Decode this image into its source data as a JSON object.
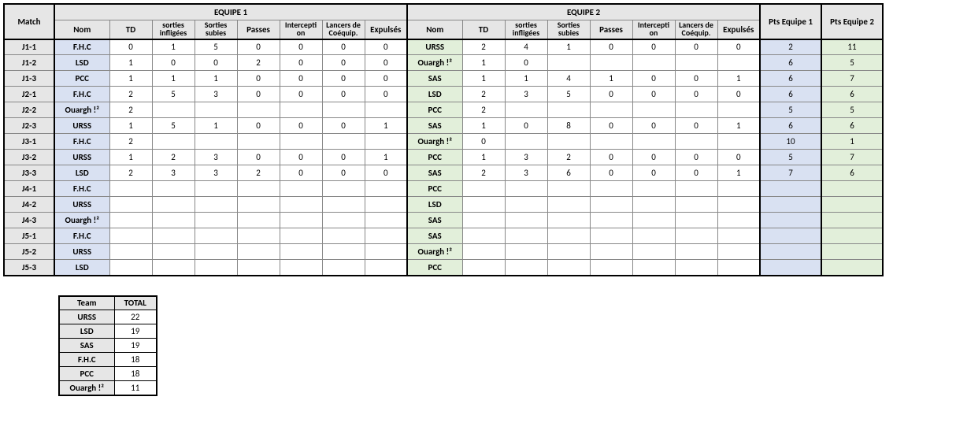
{
  "headers": {
    "match": "Match",
    "equipe1": "EQUIPE 1",
    "equipe2": "EQUIPE 2",
    "nom": "Nom",
    "td": "TD",
    "sort_infl": "sorties infligées",
    "sort_sub": "Sorties subies",
    "passes": "Passes",
    "intercept": "Intercepti on",
    "lancers": "Lancers de Coéquip.",
    "expulses": "Expulsés",
    "pts1": "Pts Equipe 1",
    "pts2": "Pts Equipe 2"
  },
  "colors": {
    "header_bg": "#e6e6e6",
    "nom1_bg": "#d9e1f2",
    "nom2_bg": "#e2efda",
    "border": "#888888",
    "thick_border": "#000000",
    "background": "#ffffff"
  },
  "rows": [
    {
      "m": "J1-1",
      "n1": "F.H.C",
      "s1": [
        "0",
        "1",
        "5",
        "0",
        "0",
        "0",
        "0"
      ],
      "n2": "URSS",
      "s2": [
        "2",
        "4",
        "1",
        "0",
        "0",
        "0",
        "0"
      ],
      "p1": "2",
      "p2": "11"
    },
    {
      "m": "J1-2",
      "n1": "LSD",
      "s1": [
        "1",
        "0",
        "0",
        "2",
        "0",
        "0",
        "0"
      ],
      "n2": "Ouargh !²",
      "s2": [
        "1",
        "0",
        "",
        "",
        "",
        "",
        ""
      ],
      "p1": "6",
      "p2": "5"
    },
    {
      "m": "J1-3",
      "n1": "PCC",
      "s1": [
        "1",
        "1",
        "1",
        "0",
        "0",
        "0",
        "0"
      ],
      "n2": "SAS",
      "s2": [
        "1",
        "1",
        "4",
        "1",
        "0",
        "0",
        "1"
      ],
      "p1": "6",
      "p2": "7"
    },
    {
      "m": "J2-1",
      "n1": "F.H.C",
      "s1": [
        "2",
        "5",
        "3",
        "0",
        "0",
        "0",
        "0"
      ],
      "n2": "LSD",
      "s2": [
        "2",
        "3",
        "5",
        "0",
        "0",
        "0",
        "0"
      ],
      "p1": "6",
      "p2": "6"
    },
    {
      "m": "J2-2",
      "n1": "Ouargh !²",
      "s1": [
        "2",
        "",
        "",
        "",
        "",
        "",
        ""
      ],
      "n2": "PCC",
      "s2": [
        "2",
        "",
        "",
        "",
        "",
        "",
        ""
      ],
      "p1": "5",
      "p2": "5"
    },
    {
      "m": "J2-3",
      "n1": "URSS",
      "s1": [
        "1",
        "5",
        "1",
        "0",
        "0",
        "0",
        "1"
      ],
      "n2": "SAS",
      "s2": [
        "1",
        "0",
        "8",
        "0",
        "0",
        "0",
        "1"
      ],
      "p1": "6",
      "p2": "6"
    },
    {
      "m": "J3-1",
      "n1": "F.H.C",
      "s1": [
        "2",
        "",
        "",
        "",
        "",
        "",
        ""
      ],
      "n2": "Ouargh !²",
      "s2": [
        "0",
        "",
        "",
        "",
        "",
        "",
        ""
      ],
      "p1": "10",
      "p2": "1"
    },
    {
      "m": "J3-2",
      "n1": "URSS",
      "s1": [
        "1",
        "2",
        "3",
        "0",
        "0",
        "0",
        "1"
      ],
      "n2": "PCC",
      "s2": [
        "1",
        "3",
        "2",
        "0",
        "0",
        "0",
        "0"
      ],
      "p1": "5",
      "p2": "7"
    },
    {
      "m": "J3-3",
      "n1": "LSD",
      "s1": [
        "2",
        "3",
        "3",
        "2",
        "0",
        "0",
        "0"
      ],
      "n2": "SAS",
      "s2": [
        "2",
        "3",
        "6",
        "0",
        "0",
        "0",
        "1"
      ],
      "p1": "7",
      "p2": "6"
    },
    {
      "m": "J4-1",
      "n1": "F.H.C",
      "s1": [
        "",
        "",
        "",
        "",
        "",
        "",
        ""
      ],
      "n2": "PCC",
      "s2": [
        "",
        "",
        "",
        "",
        "",
        "",
        ""
      ],
      "p1": "",
      "p2": ""
    },
    {
      "m": "J4-2",
      "n1": "URSS",
      "s1": [
        "",
        "",
        "",
        "",
        "",
        "",
        ""
      ],
      "n2": "LSD",
      "s2": [
        "",
        "",
        "",
        "",
        "",
        "",
        ""
      ],
      "p1": "",
      "p2": ""
    },
    {
      "m": "J4-3",
      "n1": "Ouargh !²",
      "s1": [
        "",
        "",
        "",
        "",
        "",
        "",
        ""
      ],
      "n2": "SAS",
      "s2": [
        "",
        "",
        "",
        "",
        "",
        "",
        ""
      ],
      "p1": "",
      "p2": ""
    },
    {
      "m": "J5-1",
      "n1": "F.H.C",
      "s1": [
        "",
        "",
        "",
        "",
        "",
        "",
        ""
      ],
      "n2": "SAS",
      "s2": [
        "",
        "",
        "",
        "",
        "",
        "",
        ""
      ],
      "p1": "",
      "p2": ""
    },
    {
      "m": "J5-2",
      "n1": "URSS",
      "s1": [
        "",
        "",
        "",
        "",
        "",
        "",
        ""
      ],
      "n2": "Ouargh !²",
      "s2": [
        "",
        "",
        "",
        "",
        "",
        "",
        ""
      ],
      "p1": "",
      "p2": ""
    },
    {
      "m": "J5-3",
      "n1": "LSD",
      "s1": [
        "",
        "",
        "",
        "",
        "",
        "",
        ""
      ],
      "n2": "PCC",
      "s2": [
        "",
        "",
        "",
        "",
        "",
        "",
        ""
      ],
      "p1": "",
      "p2": ""
    }
  ],
  "summary": {
    "headers": {
      "team": "Team",
      "total": "TOTAL"
    },
    "rows": [
      {
        "team": "URSS",
        "total": "22"
      },
      {
        "team": "LSD",
        "total": "19"
      },
      {
        "team": "SAS",
        "total": "19"
      },
      {
        "team": "F.H.C",
        "total": "18"
      },
      {
        "team": "PCC",
        "total": "18"
      },
      {
        "team": "Ouargh !²",
        "total": "11"
      }
    ]
  }
}
